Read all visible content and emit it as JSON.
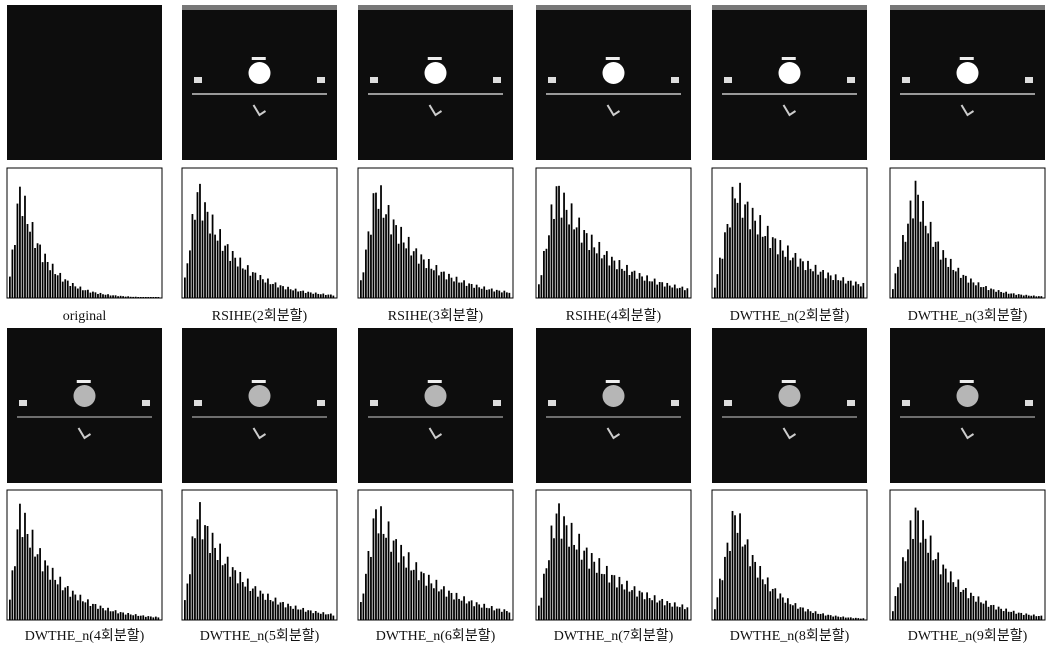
{
  "captions": [
    "original",
    "RSIHE(2회분할)",
    "RSIHE(3회분할)",
    "RSIHE(4회분할)",
    "DWTHE_n(2회분할)",
    "DWTHE_n(3회분할)",
    "DWTHE_n(4회분할)",
    "DWTHE_n(5회분할)",
    "DWTHE_n(6회분할)",
    "DWTHE_n(7회분할)",
    "DWTHE_n(8회분할)",
    "DWTHE_n(9회분할)"
  ]
}
